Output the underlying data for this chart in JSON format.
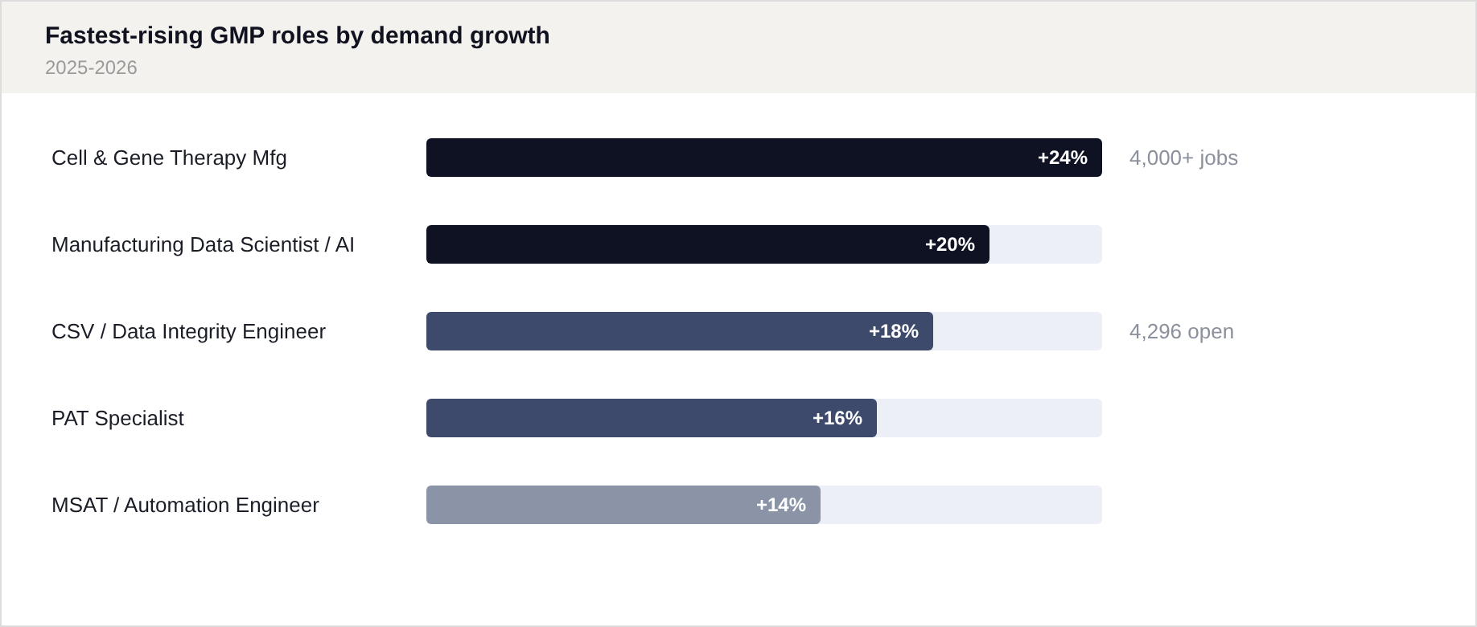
{
  "chart_data": {
    "type": "bar",
    "orientation": "horizontal",
    "title": "Fastest-rising GMP roles by demand growth",
    "subtitle": "2025-2026",
    "categories": [
      "Cell & Gene Therapy Mfg",
      "Manufacturing Data Scientist / AI",
      "CSV / Data Integrity Engineer",
      "PAT Specialist",
      "MSAT / Automation Engineer"
    ],
    "values": [
      24,
      20,
      18,
      16,
      14
    ],
    "value_labels": [
      "+24%",
      "+20%",
      "+18%",
      "+16%",
      "+14%"
    ],
    "colors": [
      "#0e1223",
      "#0e1223",
      "#3d4a6b",
      "#3d4a6b",
      "#8a94a6"
    ],
    "xlim": [
      0,
      24
    ],
    "annotations": [
      "4,000+ jobs",
      "4,296 open"
    ]
  }
}
